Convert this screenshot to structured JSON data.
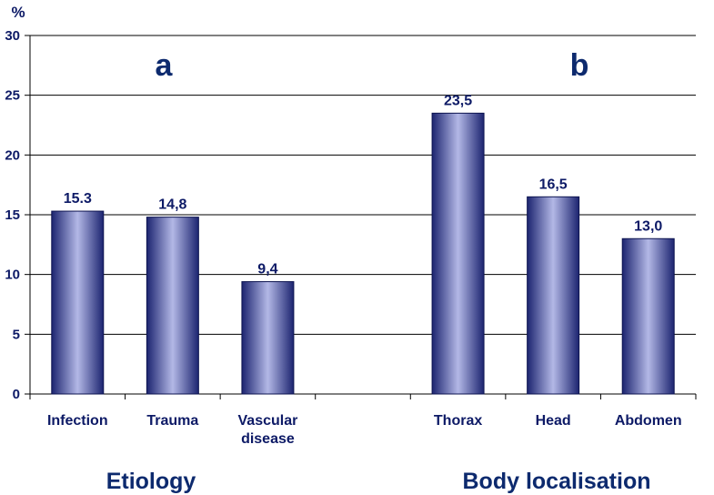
{
  "chart_data": {
    "type": "bar",
    "ylabel": "%",
    "ylim": [
      0,
      30
    ],
    "yticks": [
      0,
      5,
      10,
      15,
      20,
      25,
      30
    ],
    "grid": true,
    "panels": [
      "a",
      "b"
    ],
    "groups": [
      {
        "name": "Etiology",
        "panel": "a",
        "bars": [
          {
            "category": "Infection",
            "value": 15.3,
            "label": "15.3"
          },
          {
            "category": "Trauma",
            "value": 14.8,
            "label": "14,8"
          },
          {
            "category": "Vascular disease",
            "value": 9.4,
            "label": "9,4"
          }
        ]
      },
      {
        "name": "Body localisation",
        "panel": "b",
        "bars": [
          {
            "category": "Thorax",
            "value": 23.5,
            "label": "23,5"
          },
          {
            "category": "Head",
            "value": 16.5,
            "label": "16,5"
          },
          {
            "category": "Abdomen",
            "value": 13.0,
            "label": "13,0"
          }
        ]
      }
    ],
    "colors": {
      "bar_light": "#b3b8e6",
      "bar_dark": "#1c2470",
      "text": "#0d1a66"
    }
  }
}
